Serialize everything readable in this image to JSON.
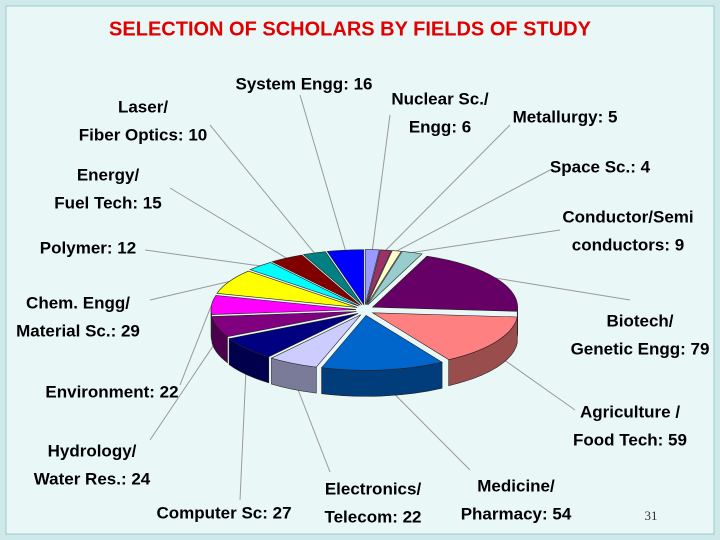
{
  "chart_data": {
    "type": "pie3d",
    "title": "SELECTION OF SCHOLARS BY FIELDS OF STUDY",
    "labels": [
      [
        "Nuclear Sc./",
        "Engg: 6"
      ],
      [
        "Metallurgy: 5"
      ],
      [
        "Space Sc.: 4"
      ],
      [
        "Conductor/Semi",
        "conductors: 9"
      ],
      [
        "Biotech/",
        "Genetic Engg: 79"
      ],
      [
        "Agriculture /",
        "Food Tech: 59"
      ],
      [
        "Medicine/",
        "Pharmacy: 54"
      ],
      [
        "Electronics/",
        "Telecom:  22"
      ],
      [
        "Computer Sc: 27"
      ],
      [
        "Hydrology/",
        "Water Res.: 24"
      ],
      [
        "Environment: 22"
      ],
      [
        "Chem. Engg/",
        "Material Sc.: 29"
      ],
      [
        "Polymer: 12"
      ],
      [
        "Energy/",
        "Fuel Tech: 15"
      ],
      [
        "Laser/",
        "Fiber Optics: 10"
      ],
      [
        "System Engg: 16"
      ]
    ],
    "values": [
      6,
      5,
      4,
      9,
      79,
      59,
      54,
      22,
      27,
      24,
      22,
      29,
      12,
      15,
      10,
      16
    ],
    "colors": [
      "#9999ff",
      "#993366",
      "#ffffcc",
      "#99cccc",
      "#660066",
      "#ff8080",
      "#0066cc",
      "#ccccff",
      "#000080",
      "#800080",
      "#ff00ff",
      "#ffff00",
      "#00ffff",
      "#800000",
      "#008080",
      "#0000ff"
    ],
    "page_number": "31"
  }
}
